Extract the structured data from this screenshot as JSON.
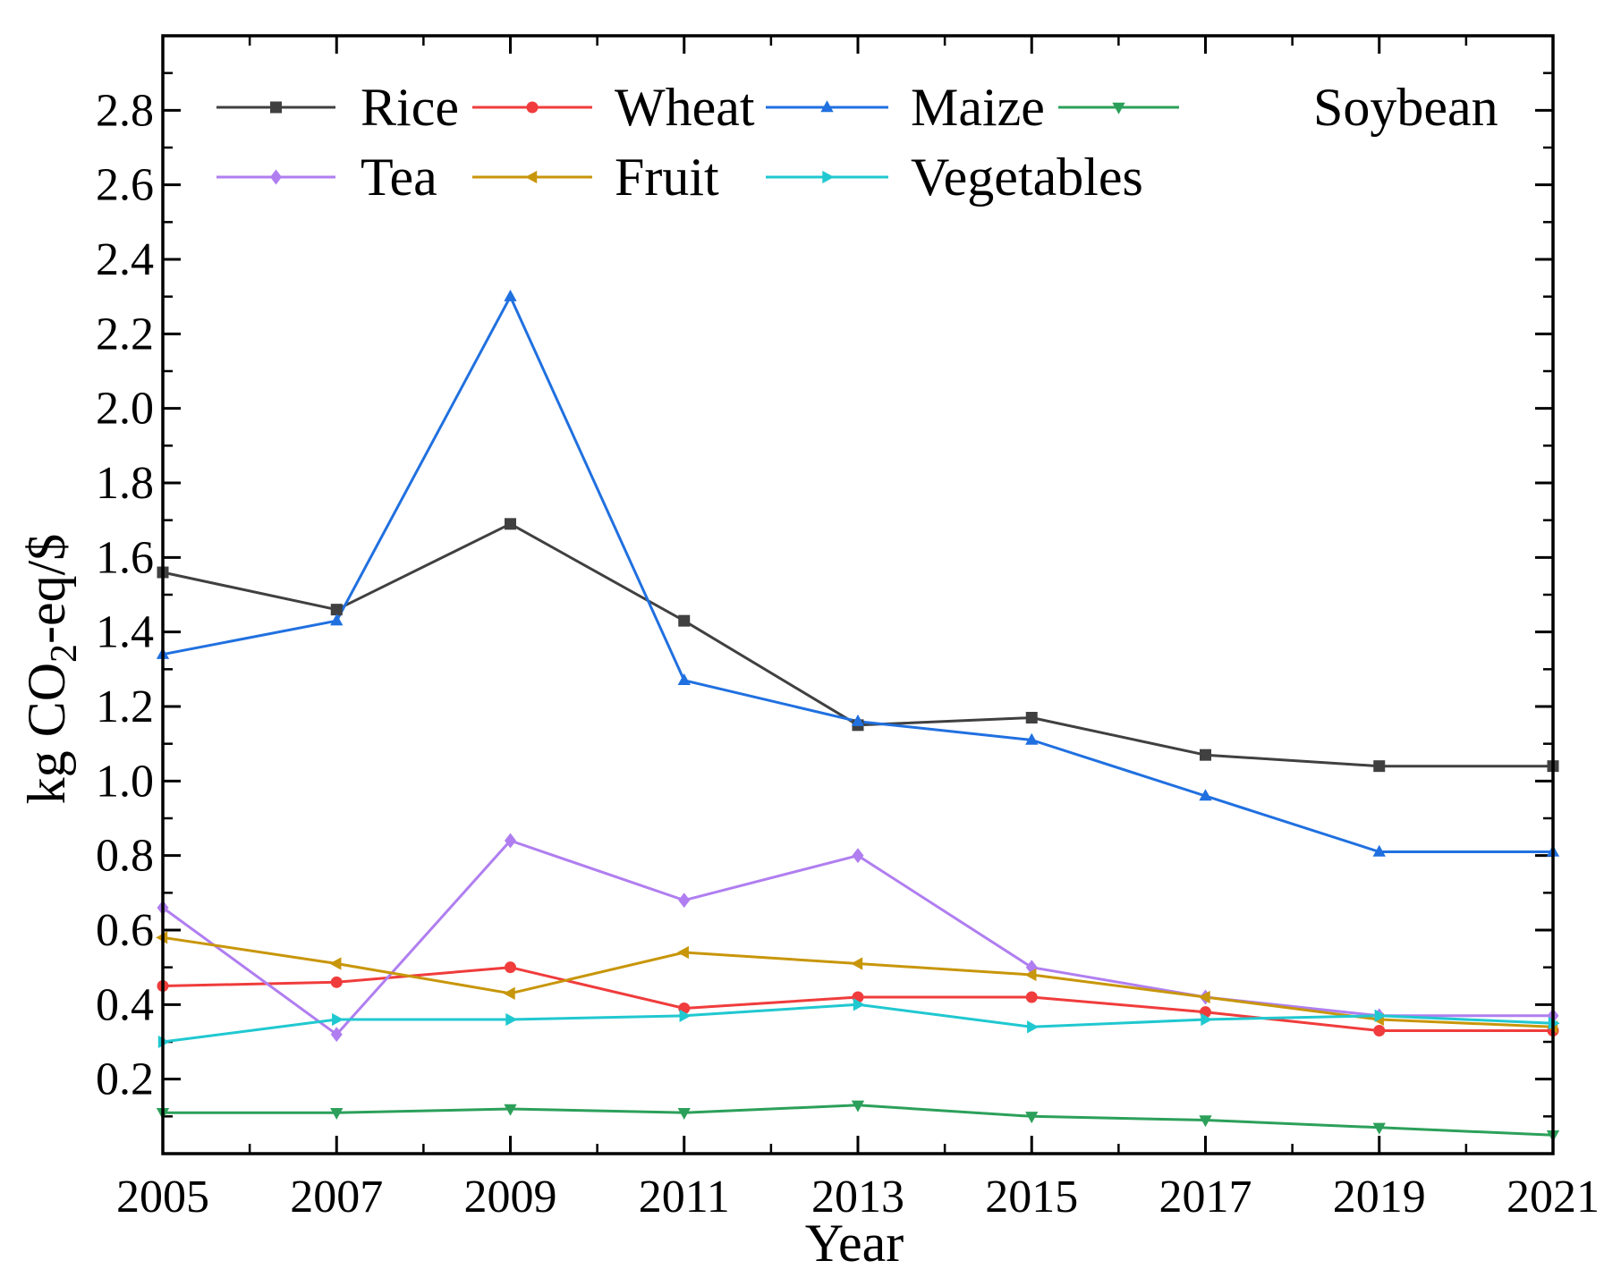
{
  "chart_data": {
    "type": "line",
    "title": "",
    "xlabel": "Year",
    "ylabel_parts": [
      "kg CO",
      "2",
      "-eq/$"
    ],
    "xlim": [
      2005,
      2021
    ],
    "ylim": [
      0.0,
      3.0
    ],
    "x": [
      2005,
      2007,
      2009,
      2011,
      2013,
      2015,
      2017,
      2019,
      2021
    ],
    "x_ticks": [
      "2005",
      "2007",
      "2009",
      "2011",
      "2013",
      "2015",
      "2017",
      "2019",
      "2021"
    ],
    "y_ticks": [
      "0.2",
      "0.4",
      "0.6",
      "0.8",
      "1.0",
      "1.2",
      "1.4",
      "1.6",
      "1.8",
      "2.0",
      "2.2",
      "2.4",
      "2.6",
      "2.8"
    ],
    "legend_position": "top",
    "series": [
      {
        "name": "Rice",
        "color": "#404040",
        "marker": "square",
        "values": [
          1.56,
          1.46,
          1.69,
          1.43,
          1.15,
          1.17,
          1.07,
          1.04,
          1.04
        ]
      },
      {
        "name": "Wheat",
        "color": "#f03c3c",
        "marker": "circle",
        "values": [
          0.45,
          0.46,
          0.5,
          0.39,
          0.42,
          0.42,
          0.38,
          0.33,
          0.33
        ]
      },
      {
        "name": "Maize",
        "color": "#2070e0",
        "marker": "triangle-up",
        "values": [
          1.34,
          1.43,
          2.3,
          1.27,
          1.16,
          1.11,
          0.96,
          0.81,
          0.81
        ]
      },
      {
        "name": "Soybean",
        "color": "#2ca05a",
        "marker": "triangle-down",
        "values": [
          0.11,
          0.11,
          0.12,
          0.11,
          0.13,
          0.1,
          0.09,
          0.07,
          0.05
        ]
      },
      {
        "name": "Tea",
        "color": "#b07ef0",
        "marker": "diamond",
        "values": [
          0.66,
          0.32,
          0.84,
          0.68,
          0.8,
          0.5,
          0.42,
          0.37,
          0.37
        ]
      },
      {
        "name": "Fruit",
        "color": "#c8960a",
        "marker": "triangle-left",
        "values": [
          0.58,
          0.51,
          0.43,
          0.54,
          0.51,
          0.48,
          0.42,
          0.36,
          0.34
        ]
      },
      {
        "name": "Vegetables",
        "color": "#20c8d0",
        "marker": "triangle-right",
        "values": [
          0.3,
          0.36,
          0.36,
          0.37,
          0.4,
          0.34,
          0.36,
          0.37,
          0.35
        ]
      }
    ]
  }
}
